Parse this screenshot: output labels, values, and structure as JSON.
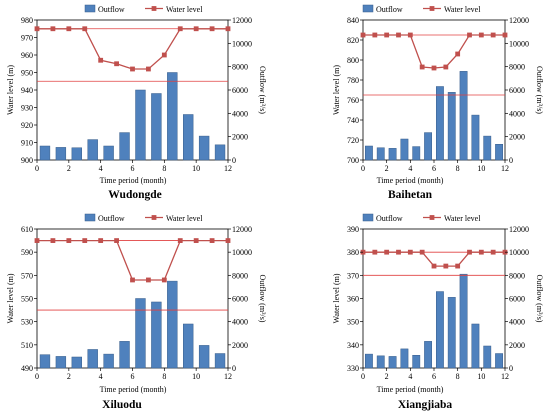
{
  "chart_data": [
    {
      "type": "bar+line",
      "title": "Wudongde",
      "xlabel": "Time period (month)",
      "ylabel": "Water level  (m)",
      "ylabel2": "Outflow  (m³/s)",
      "xlim": [
        0,
        12
      ],
      "xticks": [
        "0",
        "2",
        "4",
        "6",
        "8",
        "10",
        "12"
      ],
      "ylim": [
        900,
        980
      ],
      "yticks": [
        "900",
        "910",
        "920",
        "930",
        "940",
        "950",
        "960",
        "970",
        "980"
      ],
      "y2lim": [
        0,
        12000
      ],
      "y2ticks": [
        "0",
        "2000",
        "4000",
        "6000",
        "8000",
        "10000",
        "12000"
      ],
      "legend": [
        "Outflow",
        "Water level"
      ],
      "outflow_x": [
        0.5,
        1.5,
        2.5,
        3.5,
        4.5,
        5.5,
        6.5,
        7.5,
        8.5,
        9.5,
        10.5,
        11.5
      ],
      "outflow": [
        1200,
        1080,
        1050,
        1750,
        1200,
        2350,
        6000,
        5700,
        7500,
        3900,
        2050,
        1300
      ],
      "level_x": [
        0,
        1,
        2,
        3,
        4,
        5,
        6,
        7,
        8,
        9,
        10,
        11,
        12
      ],
      "level": [
        975,
        975,
        975,
        975,
        957,
        955,
        952,
        952,
        960,
        975,
        975,
        975,
        975
      ],
      "ref_lines": [
        975,
        945
      ]
    },
    {
      "type": "bar+line",
      "title": "Baihetan",
      "xlabel": "Time period (month)",
      "ylabel": "Water level  (m)",
      "ylabel2": "Outflow  (m³/s)",
      "xlim": [
        0,
        12
      ],
      "xticks": [
        "0",
        "2",
        "4",
        "6",
        "8",
        "10",
        "12"
      ],
      "ylim": [
        700,
        840
      ],
      "yticks": [
        "700",
        "720",
        "740",
        "760",
        "780",
        "800",
        "820",
        "840"
      ],
      "y2lim": [
        0,
        12000
      ],
      "y2ticks": [
        "0",
        "2000",
        "4000",
        "6000",
        "8000",
        "10000",
        "12000"
      ],
      "legend": [
        "Outflow",
        "Water level"
      ],
      "outflow_x": [
        0.5,
        1.5,
        2.5,
        3.5,
        4.5,
        5.5,
        6.5,
        7.5,
        8.5,
        9.5,
        10.5,
        11.5
      ],
      "outflow": [
        1200,
        1050,
        1000,
        1800,
        1150,
        2350,
        6300,
        5800,
        7600,
        3850,
        2050,
        1350
      ],
      "level_x": [
        0,
        1,
        2,
        3,
        4,
        5,
        6,
        7,
        8,
        9,
        10,
        11,
        12
      ],
      "level": [
        825,
        825,
        825,
        825,
        825,
        793,
        792,
        793,
        806,
        825,
        825,
        825,
        825
      ],
      "ref_lines": [
        825,
        765
      ]
    },
    {
      "type": "bar+line",
      "title": "Xiluodu",
      "xlabel": "Time period (month)",
      "ylabel": "Water level  (m)",
      "ylabel2": "Outflow  (m³/s)",
      "xlim": [
        0,
        12
      ],
      "xticks": [
        "0",
        "2",
        "4",
        "6",
        "8",
        "10",
        "12"
      ],
      "ylim": [
        490,
        610
      ],
      "yticks": [
        "490",
        "510",
        "530",
        "550",
        "570",
        "590",
        "610"
      ],
      "y2lim": [
        0,
        12000
      ],
      "y2ticks": [
        "0",
        "2000",
        "4000",
        "6000",
        "8000",
        "10000",
        "12000"
      ],
      "legend": [
        "Outflow",
        "Water level"
      ],
      "outflow_x": [
        0.5,
        1.5,
        2.5,
        3.5,
        4.5,
        5.5,
        6.5,
        7.5,
        8.5,
        9.5,
        10.5,
        11.5
      ],
      "outflow": [
        1150,
        1000,
        950,
        1600,
        1200,
        2300,
        6000,
        5700,
        7500,
        3800,
        1950,
        1250
      ],
      "level_x": [
        0,
        1,
        2,
        3,
        4,
        5,
        6,
        7,
        8,
        9,
        10,
        11,
        12
      ],
      "level": [
        600,
        600,
        600,
        600,
        600,
        600,
        566,
        566,
        566,
        600,
        600,
        600,
        600
      ],
      "ref_lines": [
        600,
        540
      ]
    },
    {
      "type": "bar+line",
      "title": "Xiangjiaba",
      "xlabel": "Time period (month)",
      "ylabel": "Water level  (m)",
      "ylabel2": "Outflow  (m³/s)",
      "xlim": [
        0,
        12
      ],
      "xticks": [
        "0",
        "2",
        "4",
        "6",
        "8",
        "10",
        "12"
      ],
      "ylim": [
        330,
        390
      ],
      "yticks": [
        "330",
        "340",
        "350",
        "360",
        "370",
        "380",
        "390"
      ],
      "y2lim": [
        0,
        12000
      ],
      "y2ticks": [
        "0",
        "2000",
        "4000",
        "6000",
        "8000",
        "10000",
        "12000"
      ],
      "legend": [
        "Outflow",
        "Water level"
      ],
      "outflow_x": [
        0.5,
        1.5,
        2.5,
        3.5,
        4.5,
        5.5,
        6.5,
        7.5,
        8.5,
        9.5,
        10.5,
        11.5
      ],
      "outflow": [
        1200,
        1050,
        1000,
        1650,
        1100,
        2300,
        6600,
        6100,
        8100,
        3800,
        1900,
        1250
      ],
      "level_x": [
        0,
        1,
        2,
        3,
        4,
        5,
        6,
        7,
        8,
        9,
        10,
        11,
        12
      ],
      "level": [
        380,
        380,
        380,
        380,
        380,
        380,
        374,
        374,
        374,
        380,
        380,
        380,
        380
      ],
      "ref_lines": [
        380,
        370
      ]
    }
  ],
  "colors": {
    "bar_fill": "#4f81bd",
    "bar_stroke": "#385d8a",
    "line": "#c0504d",
    "marker": "#c0504d",
    "ref_line": "#e04040",
    "axis": "#000000"
  }
}
